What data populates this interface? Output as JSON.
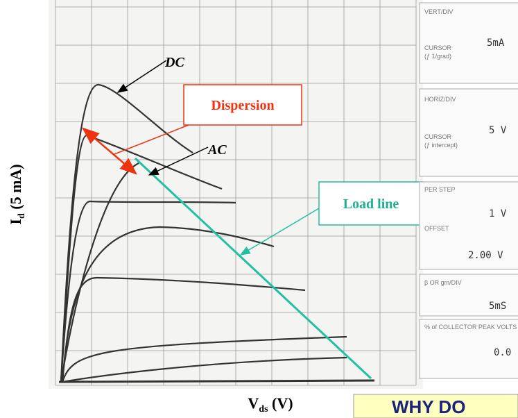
{
  "figure": {
    "annotations": {
      "dc": "DC",
      "ac": "AC",
      "dispersion": "Dispersion",
      "load_line": "Load line"
    },
    "y_axis": {
      "symbol": "I",
      "subscript": "d",
      "unit": " (5 mA)"
    },
    "x_axis": {
      "symbol": "V",
      "subscript": "ds",
      "unit": " (V)"
    },
    "panel": [
      {
        "header": "VERT/DIV",
        "label": "CURSOR",
        "sublabel": "(ƒ 1/grad)",
        "value": "5mA"
      },
      {
        "header": "HORIZ/DIV",
        "label": "CURSOR",
        "sublabel": "(ƒ intercept)",
        "value": "5 V"
      },
      {
        "header": "PER STEP",
        "value": "1 V"
      },
      {
        "header": "OFFSET",
        "value": "2.00 V"
      },
      {
        "header": "β OR gm/DIV",
        "value": "5mS"
      },
      {
        "header": "% of COLLECTOR PEAK VOLTS",
        "value": "0.0"
      }
    ],
    "banner": "WHY DO"
  }
}
